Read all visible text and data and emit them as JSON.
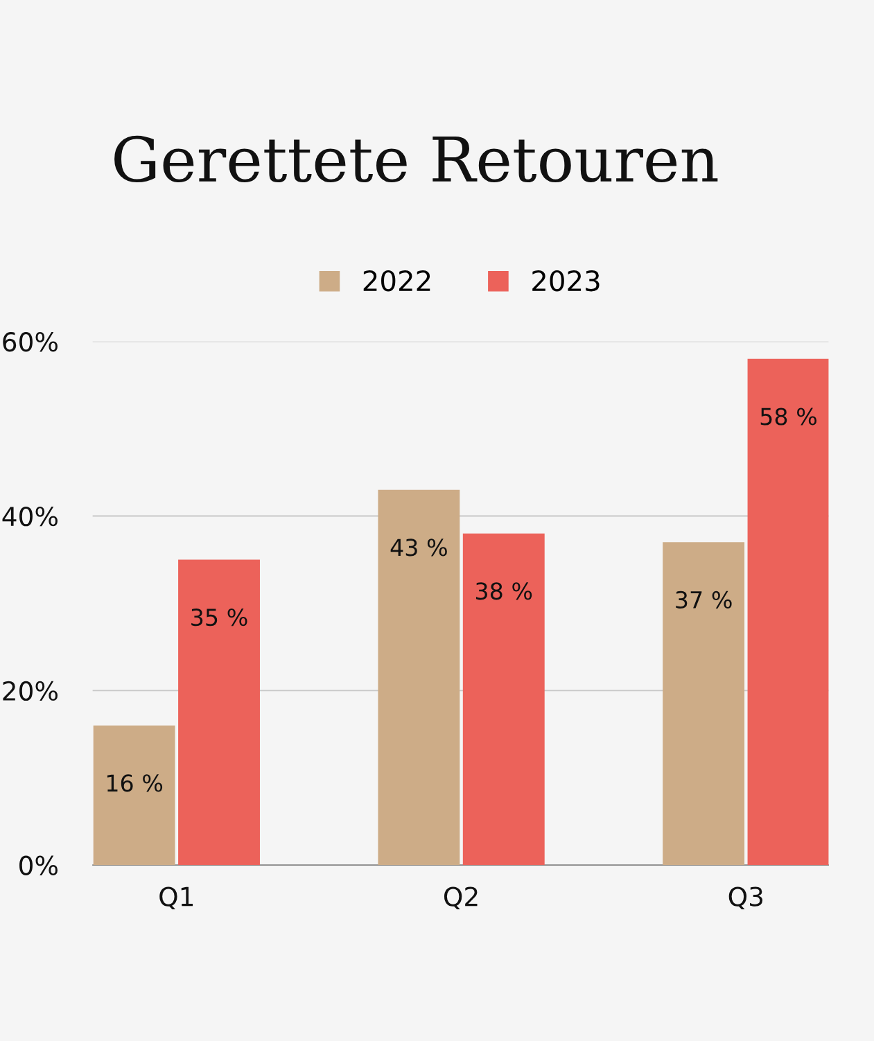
{
  "chart_data": {
    "type": "bar",
    "title": "Gerettete Retouren",
    "categories": [
      "Q1",
      "Q2",
      "Q3"
    ],
    "series": [
      {
        "name": "2022",
        "color": "#cdac87",
        "values": [
          16,
          43,
          37
        ],
        "value_labels": [
          "16 %",
          "43 %",
          "37 %"
        ]
      },
      {
        "name": "2023",
        "color": "#ec625a",
        "values": [
          35,
          38,
          58
        ],
        "value_labels": [
          "35 %",
          "38 %",
          "58 %"
        ]
      }
    ],
    "ylim": [
      0,
      60
    ],
    "yticks": [
      {
        "value": 0,
        "label": "0%"
      },
      {
        "value": 20,
        "label": "20%"
      },
      {
        "value": 40,
        "label": "40%"
      },
      {
        "value": 60,
        "label": "60%"
      }
    ],
    "grid": "y",
    "legend": "top"
  }
}
